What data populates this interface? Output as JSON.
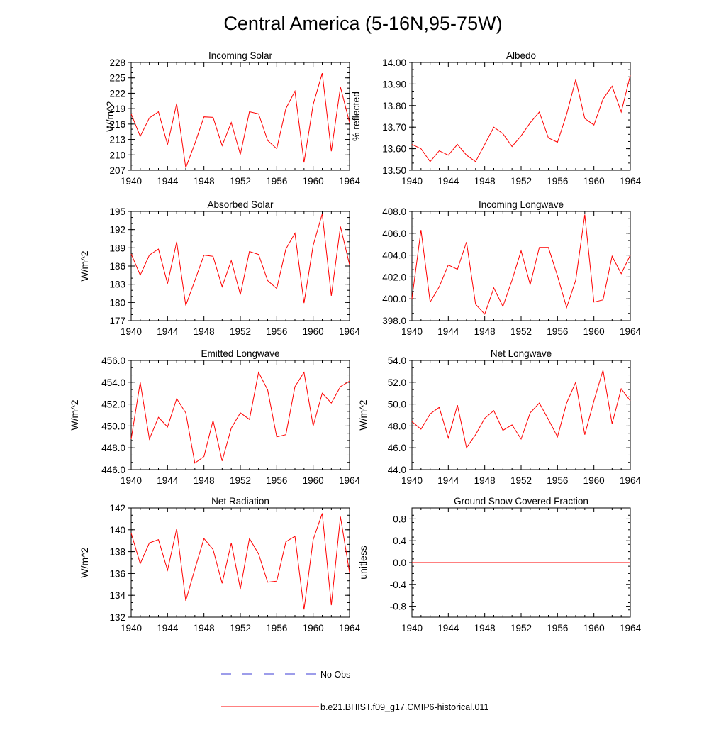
{
  "figure": {
    "title": "Central America (5-16N,95-75W)"
  },
  "legend": {
    "obs_label": "No Obs",
    "obs_color": "#3b3bd6",
    "model_label": "b.e21.BHIST.f09_g17.CMIP6-historical.011",
    "model_color": "#ff0000"
  },
  "chart_data": [
    {
      "type": "line",
      "title": "Incoming Solar",
      "ylabel": "W/m^2",
      "xlim": [
        1940,
        1964
      ],
      "xticks": [
        "1940",
        "1944",
        "1948",
        "1952",
        "1956",
        "1960",
        "1964"
      ],
      "ylim": [
        207,
        228
      ],
      "yticks": [
        "207",
        "210",
        "213",
        "216",
        "219",
        "222",
        "225",
        "228"
      ],
      "grid": false,
      "series": [
        {
          "color": "#ff0000",
          "x": [
            1940,
            1941,
            1942,
            1943,
            1944,
            1945,
            1946,
            1947,
            1948,
            1949,
            1950,
            1951,
            1952,
            1953,
            1954,
            1955,
            1956,
            1957,
            1958,
            1959,
            1960,
            1961,
            1962,
            1963,
            1964
          ],
          "y": [
            218.0,
            213.6,
            217.2,
            218.4,
            212.0,
            220.0,
            207.5,
            212.2,
            217.4,
            217.3,
            211.8,
            216.3,
            210.1,
            218.4,
            218.0,
            212.8,
            211.2,
            219.0,
            222.4,
            208.5,
            219.8,
            225.9,
            210.7,
            223.2,
            216.3
          ]
        }
      ]
    },
    {
      "type": "line",
      "title": "Albedo",
      "ylabel": "% reflected",
      "xlim": [
        1940,
        1964
      ],
      "xticks": [
        "1940",
        "1944",
        "1948",
        "1952",
        "1956",
        "1960",
        "1964"
      ],
      "ylim": [
        13.5,
        14.0
      ],
      "yticks": [
        "13.50",
        "13.60",
        "13.70",
        "13.80",
        "13.90",
        "14.00"
      ],
      "grid": false,
      "series": [
        {
          "color": "#ff0000",
          "x": [
            1940,
            1941,
            1942,
            1943,
            1944,
            1945,
            1946,
            1947,
            1948,
            1949,
            1950,
            1951,
            1952,
            1953,
            1954,
            1955,
            1956,
            1957,
            1958,
            1959,
            1960,
            1961,
            1962,
            1963,
            1964
          ],
          "y": [
            13.62,
            13.6,
            13.54,
            13.59,
            13.57,
            13.62,
            13.57,
            13.54,
            13.62,
            13.7,
            13.67,
            13.61,
            13.66,
            13.72,
            13.77,
            13.65,
            13.63,
            13.76,
            13.92,
            13.74,
            13.71,
            13.83,
            13.89,
            13.77,
            13.94
          ]
        }
      ]
    },
    {
      "type": "line",
      "title": "Absorbed Solar",
      "ylabel": "W/m^2",
      "xlim": [
        1940,
        1964
      ],
      "xticks": [
        "1940",
        "1944",
        "1948",
        "1952",
        "1956",
        "1960",
        "1964"
      ],
      "ylim": [
        177,
        195
      ],
      "yticks": [
        "177",
        "180",
        "183",
        "186",
        "189",
        "192",
        "195"
      ],
      "grid": false,
      "series": [
        {
          "color": "#ff0000",
          "x": [
            1940,
            1941,
            1942,
            1943,
            1944,
            1945,
            1946,
            1947,
            1948,
            1949,
            1950,
            1951,
            1952,
            1953,
            1954,
            1955,
            1956,
            1957,
            1958,
            1959,
            1960,
            1961,
            1962,
            1963,
            1964
          ],
          "y": [
            188.0,
            184.5,
            187.8,
            188.8,
            183.1,
            190.0,
            179.5,
            183.6,
            187.8,
            187.6,
            182.6,
            186.9,
            181.3,
            188.4,
            187.9,
            183.6,
            182.3,
            188.8,
            191.4,
            179.9,
            189.4,
            194.6,
            181.1,
            192.5,
            186.2
          ]
        }
      ]
    },
    {
      "type": "line",
      "title": "Incoming Longwave",
      "ylabel": "",
      "xlim": [
        1940,
        1964
      ],
      "xticks": [
        "1940",
        "1944",
        "1948",
        "1952",
        "1956",
        "1960",
        "1964"
      ],
      "ylim": [
        398.0,
        408.0
      ],
      "yticks": [
        "398.0",
        "400.0",
        "402.0",
        "404.0",
        "406.0",
        "408.0"
      ],
      "grid": false,
      "series": [
        {
          "color": "#ff0000",
          "x": [
            1940,
            1941,
            1942,
            1943,
            1944,
            1945,
            1946,
            1947,
            1948,
            1949,
            1950,
            1951,
            1952,
            1953,
            1954,
            1955,
            1956,
            1957,
            1958,
            1959,
            1960,
            1961,
            1962,
            1963,
            1964
          ],
          "y": [
            400.0,
            406.3,
            399.7,
            401.1,
            403.1,
            402.7,
            405.2,
            399.5,
            398.6,
            401.0,
            399.3,
            401.7,
            404.4,
            401.3,
            404.7,
            404.7,
            402.1,
            399.2,
            401.7,
            407.7,
            399.7,
            399.9,
            403.9,
            402.3,
            404.0
          ]
        }
      ]
    },
    {
      "type": "line",
      "title": "Emitted Longwave",
      "ylabel": "W/m^2",
      "xlim": [
        1940,
        1964
      ],
      "xticks": [
        "1940",
        "1944",
        "1948",
        "1952",
        "1956",
        "1960",
        "1964"
      ],
      "ylim": [
        446.0,
        456.0
      ],
      "yticks": [
        "446.0",
        "448.0",
        "450.0",
        "452.0",
        "454.0",
        "456.0"
      ],
      "grid": false,
      "series": [
        {
          "color": "#ff0000",
          "x": [
            1940,
            1941,
            1942,
            1943,
            1944,
            1945,
            1946,
            1947,
            1948,
            1949,
            1950,
            1951,
            1952,
            1953,
            1954,
            1955,
            1956,
            1957,
            1958,
            1959,
            1960,
            1961,
            1962,
            1963,
            1964
          ],
          "y": [
            448.8,
            454.0,
            448.8,
            450.8,
            449.9,
            452.5,
            451.2,
            446.6,
            447.2,
            450.5,
            446.8,
            449.8,
            451.2,
            450.6,
            454.9,
            453.3,
            449.0,
            449.2,
            453.6,
            454.9,
            450.0,
            453.0,
            452.1,
            453.6,
            454.1
          ]
        }
      ]
    },
    {
      "type": "line",
      "title": "Net Longwave",
      "ylabel": "W/m^2",
      "xlim": [
        1940,
        1964
      ],
      "xticks": [
        "1940",
        "1944",
        "1948",
        "1952",
        "1956",
        "1960",
        "1964"
      ],
      "ylim": [
        44.0,
        54.0
      ],
      "yticks": [
        "44.0",
        "46.0",
        "48.0",
        "50.0",
        "52.0",
        "54.0"
      ],
      "grid": false,
      "series": [
        {
          "color": "#ff0000",
          "x": [
            1940,
            1941,
            1942,
            1943,
            1944,
            1945,
            1946,
            1947,
            1948,
            1949,
            1950,
            1951,
            1952,
            1953,
            1954,
            1955,
            1956,
            1957,
            1958,
            1959,
            1960,
            1961,
            1962,
            1963,
            1964
          ],
          "y": [
            48.4,
            47.7,
            49.1,
            49.7,
            46.9,
            49.9,
            46.0,
            47.2,
            48.7,
            49.4,
            47.6,
            48.1,
            46.8,
            49.2,
            50.1,
            48.6,
            47.0,
            50.1,
            52.0,
            47.2,
            50.3,
            53.1,
            48.2,
            51.4,
            50.3
          ]
        }
      ]
    },
    {
      "type": "line",
      "title": "Net Radiation",
      "ylabel": "W/m^2",
      "xlim": [
        1940,
        1964
      ],
      "xticks": [
        "1940",
        "1944",
        "1948",
        "1952",
        "1956",
        "1960",
        "1964"
      ],
      "ylim": [
        132,
        142
      ],
      "yticks": [
        "132",
        "134",
        "136",
        "138",
        "140",
        "142"
      ],
      "grid": false,
      "series": [
        {
          "color": "#ff0000",
          "x": [
            1940,
            1941,
            1942,
            1943,
            1944,
            1945,
            1946,
            1947,
            1948,
            1949,
            1950,
            1951,
            1952,
            1953,
            1954,
            1955,
            1956,
            1957,
            1958,
            1959,
            1960,
            1961,
            1962,
            1963,
            1964
          ],
          "y": [
            139.7,
            136.9,
            138.8,
            139.1,
            136.3,
            140.1,
            133.5,
            136.4,
            139.2,
            138.2,
            135.1,
            138.8,
            134.6,
            139.2,
            137.8,
            135.2,
            135.3,
            138.9,
            139.4,
            132.7,
            139.1,
            141.5,
            133.1,
            141.2,
            136.1
          ]
        }
      ]
    },
    {
      "type": "line",
      "title": "Ground Snow Covered Fraction",
      "ylabel": "unitless",
      "xlim": [
        1940,
        1964
      ],
      "xticks": [
        "1940",
        "1944",
        "1948",
        "1952",
        "1956",
        "1960",
        "1964"
      ],
      "ylim": [
        -1.0,
        1.0
      ],
      "yticks": [
        "-0.8",
        "-0.4",
        "0.0",
        "0.4",
        "0.8"
      ],
      "grid": false,
      "series": [
        {
          "color": "#ff0000",
          "x": [
            1940,
            1941,
            1942,
            1943,
            1944,
            1945,
            1946,
            1947,
            1948,
            1949,
            1950,
            1951,
            1952,
            1953,
            1954,
            1955,
            1956,
            1957,
            1958,
            1959,
            1960,
            1961,
            1962,
            1963,
            1964
          ],
          "y": [
            0,
            0,
            0,
            0,
            0,
            0,
            0,
            0,
            0,
            0,
            0,
            0,
            0,
            0,
            0,
            0,
            0,
            0,
            0,
            0,
            0,
            0,
            0,
            0,
            0
          ]
        }
      ]
    }
  ]
}
